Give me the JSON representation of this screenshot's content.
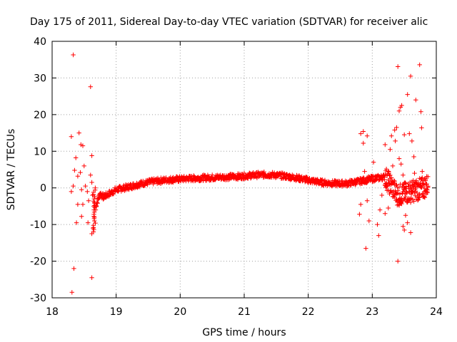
{
  "chart_data": {
    "type": "scatter",
    "title": "Day 175 of 2011, Sidereal Day-to-day VTEC variation (SDTVAR) for receiver alic",
    "xlabel": "GPS time / hours",
    "ylabel": "SDTVAR / TECUs",
    "xlim": [
      18,
      24
    ],
    "ylim": [
      -30,
      40
    ],
    "xticks": [
      "18",
      "19",
      "20",
      "21",
      "22",
      "23",
      "24"
    ],
    "yticks": [
      "-30",
      "-20",
      "-10",
      "0",
      "10",
      "20",
      "30",
      "40"
    ],
    "grid": true,
    "marker": "plus",
    "color": "#ff0000",
    "series": [
      {
        "name": "SDTVAR",
        "trend_x": [
          18.68,
          18.75,
          18.8,
          18.9,
          19.0,
          19.2,
          19.4,
          19.6,
          19.8,
          20.0,
          20.3,
          20.6,
          20.9,
          21.1,
          21.3,
          21.4,
          21.6,
          21.8,
          22.0,
          22.2,
          22.4,
          22.6,
          22.8,
          23.0,
          23.2,
          23.4,
          23.6,
          23.8,
          23.88
        ],
        "trend_y": [
          -5.0,
          -1.5,
          -2.5,
          -1.5,
          -0.5,
          0.3,
          1.2,
          1.8,
          2.2,
          2.4,
          2.7,
          2.9,
          3.1,
          3.4,
          3.6,
          3.6,
          3.3,
          2.8,
          2.1,
          1.5,
          1.2,
          1.2,
          1.8,
          2.5,
          3.0,
          -2.0,
          -1.0,
          0.0,
          1.0
        ],
        "outliers": [
          [
            18.33,
            36.3
          ],
          [
            18.3,
            14
          ],
          [
            18.42,
            15
          ],
          [
            18.45,
            11.8
          ],
          [
            18.48,
            11.5
          ],
          [
            18.37,
            8.2
          ],
          [
            18.35,
            4.8
          ],
          [
            18.4,
            3.2
          ],
          [
            18.44,
            4.2
          ],
          [
            18.5,
            6.0
          ],
          [
            18.3,
            -1.0
          ],
          [
            18.33,
            0.5
          ],
          [
            18.46,
            -0.5
          ],
          [
            18.52,
            0.5
          ],
          [
            18.55,
            -1.0
          ],
          [
            18.4,
            -4.5
          ],
          [
            18.48,
            -4.5
          ],
          [
            18.57,
            -3.5
          ],
          [
            18.38,
            -9.5
          ],
          [
            18.46,
            -7.8
          ],
          [
            18.56,
            -9.5
          ],
          [
            18.6,
            27.6
          ],
          [
            18.62,
            8.8
          ],
          [
            18.6,
            3.5
          ],
          [
            18.62,
            1.5
          ],
          [
            18.63,
            -2.0
          ],
          [
            18.65,
            -5.0
          ],
          [
            18.66,
            -8.0
          ],
          [
            18.64,
            -11.0
          ],
          [
            18.62,
            -12.5
          ],
          [
            18.66,
            -4.0
          ],
          [
            18.68,
            -6.0
          ],
          [
            18.34,
            -22
          ],
          [
            18.31,
            -28.5
          ],
          [
            18.62,
            -24.5
          ],
          [
            22.82,
            14.8
          ],
          [
            22.86,
            15.4
          ],
          [
            22.92,
            14.2
          ],
          [
            22.86,
            12.2
          ],
          [
            22.88,
            4.5
          ],
          [
            22.84,
            2.5
          ],
          [
            22.82,
            -4.5
          ],
          [
            22.8,
            -7.2
          ],
          [
            22.92,
            -3.5
          ],
          [
            22.95,
            -9.0
          ],
          [
            22.9,
            -16.5
          ],
          [
            23.02,
            7.0
          ],
          [
            23.05,
            2.0
          ],
          [
            23.08,
            -10.0
          ],
          [
            23.1,
            -13.0
          ],
          [
            23.12,
            -6.0
          ],
          [
            23.15,
            -2.0
          ],
          [
            23.2,
            11.8
          ],
          [
            23.2,
            -7.0
          ],
          [
            23.25,
            -5.5
          ],
          [
            23.28,
            10.5
          ],
          [
            23.3,
            14.2
          ],
          [
            23.32,
            6.0
          ],
          [
            23.35,
            15.8
          ],
          [
            23.36,
            12.8
          ],
          [
            23.38,
            16.5
          ],
          [
            23.4,
            33.1
          ],
          [
            23.42,
            21.0
          ],
          [
            23.44,
            22.0
          ],
          [
            23.46,
            22.5
          ],
          [
            23.5,
            14.5
          ],
          [
            23.42,
            8.0
          ],
          [
            23.45,
            6.5
          ],
          [
            23.48,
            3.5
          ],
          [
            23.4,
            -20.0
          ],
          [
            23.48,
            -10.5
          ],
          [
            23.5,
            -11.5
          ],
          [
            23.52,
            -7.5
          ],
          [
            23.55,
            -9.5
          ],
          [
            23.55,
            25.5
          ],
          [
            23.58,
            14.8
          ],
          [
            23.6,
            30.5
          ],
          [
            23.62,
            12.8
          ],
          [
            23.65,
            8.5
          ],
          [
            23.66,
            4.0
          ],
          [
            23.6,
            -12.2
          ],
          [
            23.68,
            24.0
          ],
          [
            23.74,
            33.6
          ],
          [
            23.76,
            20.8
          ],
          [
            23.77,
            16.4
          ],
          [
            23.78,
            4.5
          ],
          [
            23.8,
            2.0
          ]
        ]
      }
    ]
  }
}
